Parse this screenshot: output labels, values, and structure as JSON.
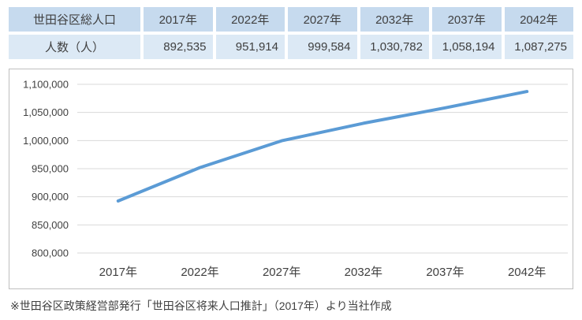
{
  "table": {
    "corner_label": "世田谷区総人口",
    "years": [
      "2017年",
      "2022年",
      "2027年",
      "2032年",
      "2037年",
      "2042年"
    ],
    "row_label": "人数（人）",
    "values": [
      "892,535",
      "951,914",
      "999,584",
      "1,030,782",
      "1,058,194",
      "1,087,275"
    ]
  },
  "chart_data": {
    "type": "line",
    "categories": [
      "2017年",
      "2022年",
      "2027年",
      "2032年",
      "2037年",
      "2042年"
    ],
    "values": [
      892535,
      951914,
      999584,
      1030782,
      1058194,
      1087275
    ],
    "series_name": "世田谷区総人口",
    "title": "",
    "xlabel": "",
    "ylabel": "",
    "ylim": [
      800000,
      1100000
    ],
    "ytick_step": 50000,
    "ytick_labels": [
      "800,000",
      "850,000",
      "900,000",
      "950,000",
      "1,000,000",
      "1,050,000",
      "1,100,000"
    ],
    "grid": true,
    "legend_position": "none",
    "line_color": "#5B9BD5"
  },
  "footnote": "※世田谷区政策経営部発行「世田谷区将来人口推計」（2017年）より当社作成",
  "colors": {
    "header_bg": "#C6DAEE",
    "row_bg": "#DCE9F5",
    "grid_line": "#D9D9D9",
    "chart_border": "#BFBFBF",
    "text": "#404040"
  }
}
